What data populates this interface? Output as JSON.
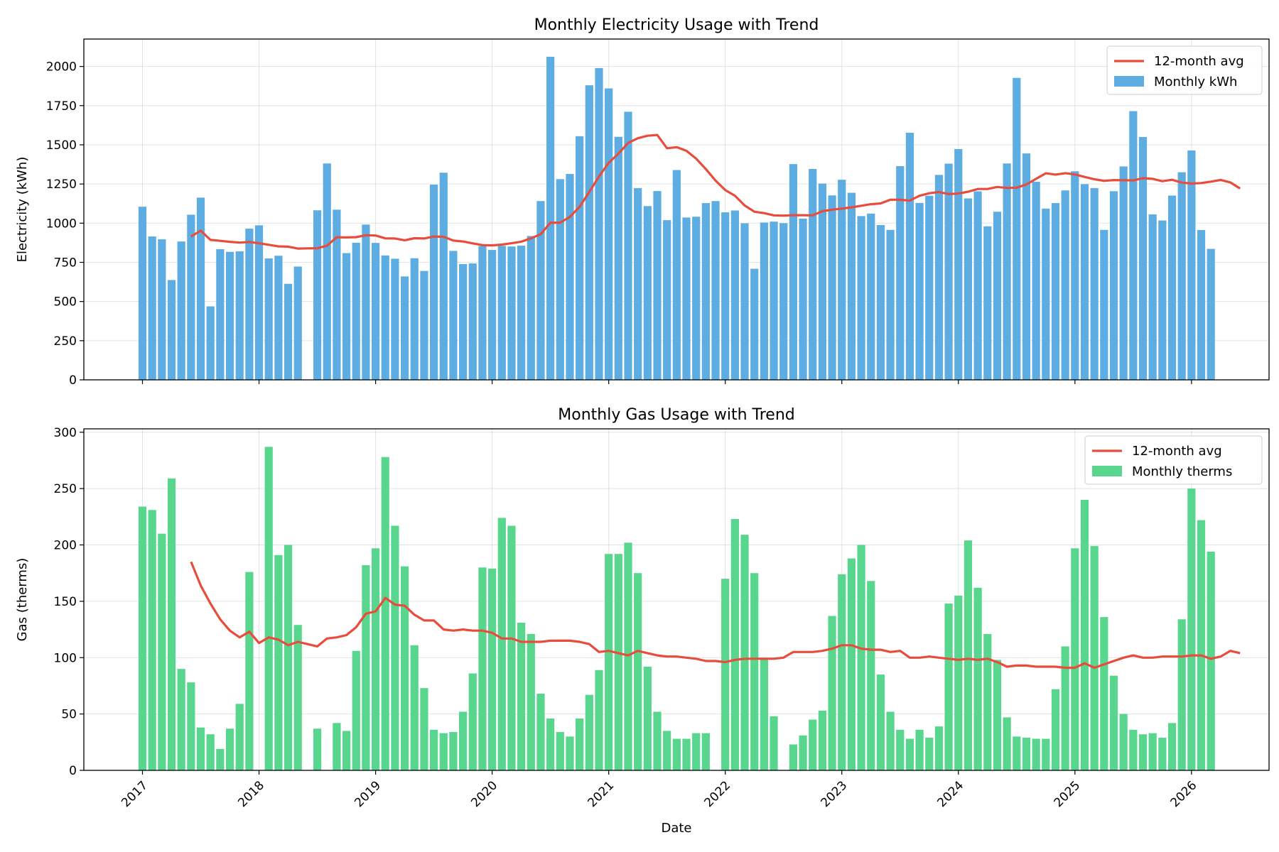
{
  "chart_data": [
    {
      "type": "bar",
      "title": "Monthly Electricity Usage with Trend",
      "xlabel": "",
      "ylabel": "Electricity (kWh)",
      "ylim": [
        0,
        2175
      ],
      "yticks": [
        0,
        250,
        500,
        750,
        1000,
        1250,
        1500,
        1750,
        2000
      ],
      "xticks": [
        "2017",
        "2018",
        "2019",
        "2020",
        "2021",
        "2022",
        "2023",
        "2024",
        "2025",
        "2026"
      ],
      "start_month": "2017-01",
      "grid": true,
      "legend_position": "top-right",
      "colors": {
        "bars": "#5DADE2",
        "trend": "#E74C3C"
      },
      "series": [
        {
          "name": "Monthly kWh",
          "type": "bar",
          "values": [
            1105,
            915,
            897,
            637,
            883,
            1054,
            1163,
            469,
            834,
            817,
            820,
            965,
            986,
            775,
            792,
            613,
            723,
            null,
            1082,
            1381,
            1086,
            809,
            875,
            991,
            874,
            794,
            773,
            660,
            776,
            695,
            1246,
            1322,
            823,
            739,
            743,
            854,
            829,
            855,
            851,
            857,
            918,
            1141,
            2062,
            1281,
            1314,
            1555,
            1880,
            1990,
            1860,
            1551,
            1711,
            1224,
            1109,
            1205,
            1019,
            1339,
            1036,
            1041,
            1128,
            1141,
            1069,
            1081,
            999,
            709,
            1004,
            1010,
            1000,
            1377,
            1029,
            1346,
            1253,
            1177,
            1277,
            1194,
            1045,
            1061,
            988,
            957,
            1364,
            1577,
            1129,
            1175,
            1308,
            1380,
            1473,
            1158,
            1203,
            980,
            1073,
            1381,
            1927,
            1445,
            1264,
            1093,
            1128,
            1209,
            1331,
            1249,
            1224,
            957,
            1204,
            1362,
            1715,
            1550,
            1056,
            1017,
            1176,
            1325,
            1464,
            956,
            836
          ]
        },
        {
          "name": "12-month avg",
          "type": "line",
          "start_index": 5,
          "values": [
            915,
            952,
            893,
            887,
            881,
            876,
            880,
            872,
            862,
            852,
            850,
            838,
            839,
            840,
            856,
            910,
            909,
            911,
            923,
            921,
            903,
            902,
            891,
            904,
            902,
            915,
            913,
            889,
            883,
            871,
            860,
            858,
            863,
            872,
            882,
            903,
            930,
            1003,
            1003,
            1040,
            1104,
            1199,
            1298,
            1385,
            1443,
            1512,
            1542,
            1558,
            1563,
            1478,
            1485,
            1462,
            1412,
            1345,
            1272,
            1211,
            1175,
            1113,
            1073,
            1064,
            1050,
            1048,
            1051,
            1051,
            1050,
            1076,
            1086,
            1093,
            1101,
            1111,
            1121,
            1126,
            1150,
            1149,
            1144,
            1175,
            1191,
            1199,
            1186,
            1189,
            1201,
            1218,
            1218,
            1231,
            1225,
            1226,
            1247,
            1283,
            1318,
            1310,
            1319,
            1311,
            1295,
            1280,
            1270,
            1275,
            1274,
            1273,
            1287,
            1283,
            1268,
            1277,
            1259,
            1253,
            1256,
            1265,
            1276,
            1260,
            1221
          ]
        }
      ]
    },
    {
      "type": "bar",
      "title": "Monthly Gas Usage with Trend",
      "xlabel": "Date",
      "ylabel": "Gas (therms)",
      "ylim": [
        0,
        303
      ],
      "yticks": [
        0,
        50,
        100,
        150,
        200,
        250,
        300
      ],
      "xticks": [
        "2017",
        "2018",
        "2019",
        "2020",
        "2021",
        "2022",
        "2023",
        "2024",
        "2025",
        "2026"
      ],
      "start_month": "2017-01",
      "grid": true,
      "legend_position": "top-right",
      "colors": {
        "bars": "#58D68D",
        "trend": "#E74C3C"
      },
      "series": [
        {
          "name": "Monthly therms",
          "type": "bar",
          "values": [
            234,
            231,
            210,
            259,
            90,
            78,
            38,
            32,
            19,
            37,
            59,
            176,
            null,
            287,
            191,
            200,
            129,
            null,
            37,
            null,
            42,
            35,
            106,
            182,
            197,
            278,
            217,
            181,
            111,
            73,
            36,
            33,
            34,
            52,
            86,
            180,
            179,
            224,
            217,
            131,
            121,
            68,
            46,
            34,
            30,
            46,
            67,
            89,
            192,
            192,
            202,
            175,
            92,
            52,
            35,
            28,
            28,
            33,
            33,
            null,
            170,
            223,
            209,
            175,
            100,
            48,
            null,
            23,
            31,
            45,
            53,
            137,
            174,
            188,
            200,
            168,
            85,
            52,
            36,
            28,
            36,
            29,
            39,
            148,
            155,
            204,
            162,
            121,
            98,
            47,
            30,
            29,
            28,
            28,
            72,
            110,
            197,
            240,
            199,
            136,
            84,
            50,
            36,
            32,
            33,
            29,
            42,
            134,
            250,
            222,
            194
          ]
        },
        {
          "name": "12-month avg",
          "type": "line",
          "start_index": 5,
          "values": [
            185,
            164,
            148,
            134,
            124,
            118,
            123,
            113,
            118,
            116,
            111,
            114,
            112,
            110,
            117,
            118,
            120,
            127,
            139,
            141,
            153,
            147,
            146,
            138,
            133,
            133,
            125,
            124,
            125,
            124,
            124,
            122,
            117,
            117,
            114,
            114,
            114,
            115,
            115,
            115,
            114,
            112,
            105,
            106,
            104,
            102,
            106,
            104,
            102,
            101,
            101,
            100,
            99,
            97,
            97,
            96,
            98,
            99,
            99,
            99,
            99,
            100,
            105,
            105,
            105,
            106,
            108,
            111,
            111,
            108,
            107,
            107,
            105,
            106,
            100,
            100,
            101,
            100,
            99,
            98,
            99,
            98,
            99,
            96,
            92,
            93,
            93,
            92,
            92,
            92,
            91,
            91,
            95,
            91,
            94,
            97,
            100,
            102,
            100,
            100,
            101,
            101,
            101,
            102,
            102,
            99,
            101,
            106,
            104
          ]
        }
      ]
    }
  ]
}
